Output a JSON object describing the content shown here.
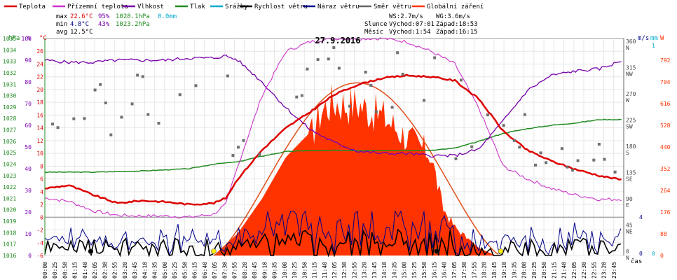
{
  "legend": [
    {
      "label": "Teplota",
      "color": "#dd0000"
    },
    {
      "label": "Přízemní teplota",
      "color": "#cc33cc"
    },
    {
      "label": "Vlhkost",
      "color": "#7700aa"
    },
    {
      "label": "Tlak",
      "color": "#228b22"
    },
    {
      "label": "Srážky",
      "color": "#00aacc"
    },
    {
      "label": "Rychlost větru",
      "color": "#000000"
    },
    {
      "label": "Náraz větru",
      "color": "#000088"
    },
    {
      "label": "Směr větru",
      "color": "#666666"
    },
    {
      "label": "Globální záření",
      "color": "#ff3300"
    }
  ],
  "stats": {
    "max": {
      "label": "max",
      "temp": "22.6°C",
      "hum": "95%",
      "press": "1028.1hPa",
      "rain": "0.0mm"
    },
    "min": {
      "label": "min",
      "temp": "4.8°C",
      "hum": "43%",
      "press": "1023.2hPa"
    },
    "avg": {
      "label": "avg",
      "temp": "12.5°C"
    }
  },
  "info": {
    "ws": "WS:2.7m/s",
    "wg": "WG:3.6m/s",
    "sun_label": "Slunce",
    "sunrise": "Východ:07:01",
    "sunset": "Západ:18:53",
    "moon_label": "Měsíc",
    "moonrise": "Východ:1:54",
    "moonset": "Západ:16:15"
  },
  "chart_data": {
    "type": "line",
    "title": "27.9.2016",
    "xlabel": "čas",
    "x_ticks": [
      "00:00",
      "00:25",
      "00:50",
      "01:15",
      "01:40",
      "02:05",
      "02:30",
      "02:55",
      "03:20",
      "03:45",
      "04:10",
      "04:35",
      "05:00",
      "05:25",
      "05:50",
      "06:15",
      "06:40",
      "07:05",
      "07:30",
      "07:55",
      "08:20",
      "08:45",
      "09:10",
      "09:35",
      "10:00",
      "10:25",
      "10:50",
      "11:15",
      "11:40",
      "12:05",
      "12:30",
      "12:55",
      "13:20",
      "13:45",
      "14:10",
      "14:35",
      "15:00",
      "15:25",
      "15:50",
      "16:15",
      "16:40",
      "17:05",
      "17:30",
      "17:55",
      "18:20",
      "18:45",
      "19:10",
      "19:35",
      "20:00",
      "20:25",
      "20:50",
      "21:15",
      "21:40",
      "22:05",
      "22:30",
      "22:55",
      "23:20",
      "23:45"
    ],
    "axes": {
      "pressure": {
        "unit": "hPa",
        "range": [
          1016,
          1035
        ],
        "ticks": [
          "1016",
          "1017",
          "1018",
          "1019",
          "1020",
          "1021",
          "1022",
          "1023",
          "1024",
          "1025",
          "1026",
          "1027",
          "1028",
          "1029",
          "1030",
          "1031",
          "1032",
          "1033",
          "1034",
          "1035"
        ]
      },
      "humidity": {
        "unit": "%",
        "range": [
          0,
          100
        ],
        "ticks": [
          "0",
          "10",
          "20",
          "30",
          "40",
          "50",
          "60",
          "70",
          "80",
          "90",
          "100"
        ]
      },
      "temperature": {
        "unit": "°C",
        "range": [
          -6,
          28
        ],
        "ticks": [
          "-6",
          "-4",
          "-2",
          "0",
          "2",
          "4",
          "6",
          "8",
          "10",
          "12",
          "14",
          "16",
          "18",
          "20",
          "22",
          "24",
          "26"
        ]
      },
      "wind_dir": {
        "unit": "°",
        "ticks": [
          {
            "deg": "0",
            "dir": "N"
          },
          {
            "deg": "45",
            "dir": "NE"
          },
          {
            "deg": "90",
            "dir": "E"
          },
          {
            "deg": "135",
            "dir": "SE"
          },
          {
            "deg": "180",
            "dir": "S"
          },
          {
            "deg": "225",
            "dir": "SW"
          },
          {
            "deg": "270",
            "dir": "W"
          },
          {
            "deg": "315",
            "dir": "NW"
          },
          {
            "deg": "360",
            "dir": "N"
          }
        ]
      },
      "wind_speed": {
        "unit": "m/s",
        "ticks": [
          "0",
          "4"
        ]
      },
      "rain": {
        "unit": "mm",
        "ticks": [
          "0",
          "1"
        ]
      },
      "radiation": {
        "unit": "W",
        "range": [
          0,
          880
        ],
        "ticks": [
          "0",
          "88",
          "176",
          "264",
          "352",
          "440",
          "528",
          "616",
          "704",
          "792"
        ]
      }
    },
    "series": [
      {
        "name": "Teplota",
        "x": [
          0,
          1,
          2,
          3,
          4,
          5,
          6,
          7,
          7.5,
          8,
          9,
          10,
          11,
          12,
          13,
          14,
          15,
          16,
          17,
          18,
          19,
          20,
          21,
          22,
          23,
          24
        ],
        "values": [
          4.5,
          5.0,
          3.5,
          2.2,
          2.6,
          2.4,
          2.0,
          2.2,
          3.0,
          6.0,
          10.5,
          14.0,
          16.5,
          19.2,
          20.8,
          21.8,
          22.2,
          22.0,
          21.4,
          18.5,
          13.5,
          10.5,
          8.8,
          7.5,
          6.5,
          5.8
        ]
      },
      {
        "name": "Přízemní teplota",
        "x": [
          0,
          1,
          2,
          3,
          4,
          5,
          6,
          7,
          7.5,
          8,
          9,
          10,
          11,
          12,
          13,
          14,
          15,
          16,
          17,
          18,
          19,
          20,
          21,
          22,
          23,
          24
        ],
        "values": [
          3.0,
          2.5,
          1.0,
          0.3,
          0.2,
          0.2,
          0.0,
          0.5,
          2.0,
          8.0,
          19.0,
          26.0,
          27.5,
          28.0,
          28.0,
          28.0,
          27.5,
          26.0,
          24.0,
          17.0,
          8.0,
          6.0,
          4.5,
          3.5,
          2.8,
          2.8
        ]
      },
      {
        "name": "Vlhkost",
        "x": [
          0,
          1,
          2,
          3,
          4,
          5,
          6,
          7,
          7.5,
          8,
          9,
          10,
          11,
          12,
          13,
          14,
          15,
          16,
          17,
          18,
          19,
          20,
          21,
          22,
          23,
          24
        ],
        "values": [
          90,
          89,
          89,
          90,
          90,
          90,
          91,
          91,
          92,
          90,
          80,
          68,
          58,
          52,
          48,
          47,
          47,
          46,
          46,
          49,
          62,
          76,
          83,
          85,
          86,
          90
        ]
      },
      {
        "name": "Tlak",
        "x": [
          0,
          2,
          4,
          6,
          7,
          8,
          9,
          10,
          11,
          12,
          13,
          14,
          15,
          16,
          17,
          18,
          19,
          20,
          21,
          22,
          23,
          24
        ],
        "values": [
          1023.3,
          1023.3,
          1023.4,
          1023.6,
          1024.0,
          1024.2,
          1024.7,
          1025.1,
          1025.2,
          1025.2,
          1025.2,
          1025.2,
          1025.2,
          1025.2,
          1025.4,
          1026.0,
          1026.7,
          1027.1,
          1027.4,
          1027.6,
          1027.9,
          1027.9
        ]
      },
      {
        "name": "Globální záření",
        "x": [
          7.0,
          8,
          9,
          10,
          11,
          11.5,
          12,
          12.5,
          13,
          13.5,
          14,
          15,
          16,
          16.5,
          17,
          18,
          18.7
        ],
        "values": [
          0,
          90,
          230,
          400,
          500,
          620,
          650,
          640,
          640,
          610,
          590,
          500,
          430,
          200,
          120,
          30,
          0
        ]
      }
    ],
    "grid": true
  }
}
